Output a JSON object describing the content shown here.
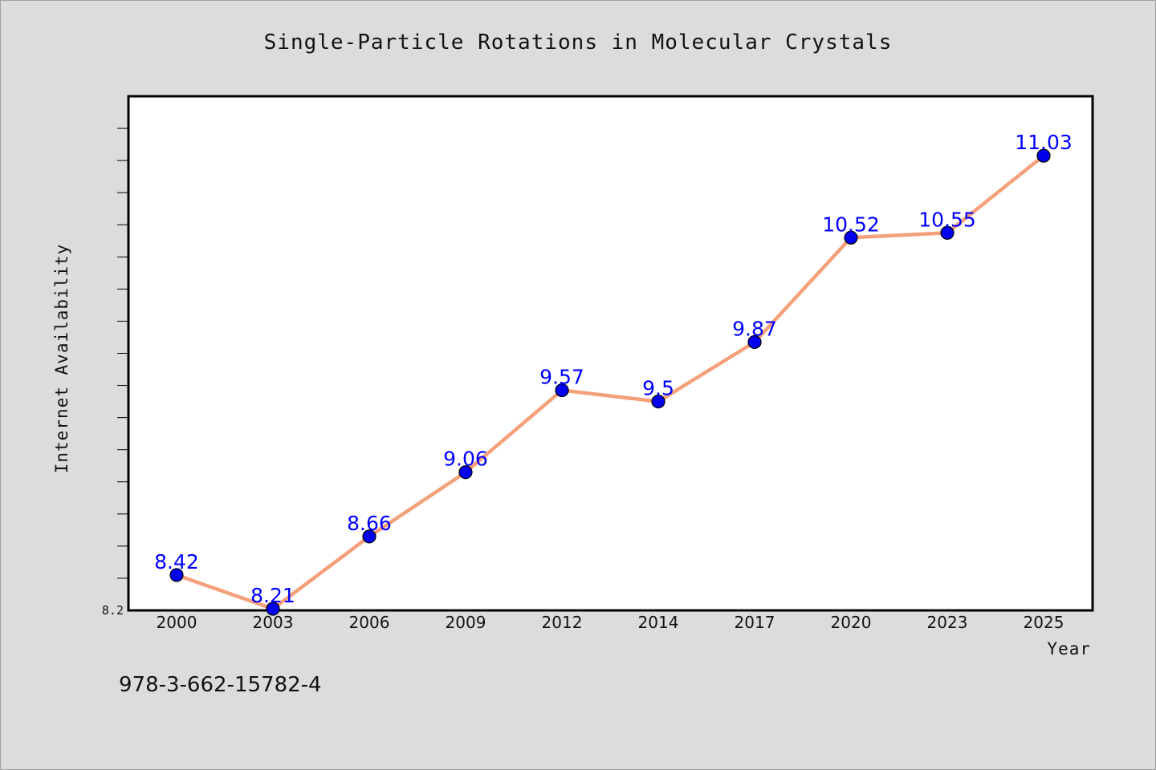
{
  "chart_data": {
    "type": "line",
    "title": "Single-Particle Rotations in Molecular Crystals",
    "xlabel": "Year",
    "ylabel": "Internet Availability",
    "categories": [
      "2000",
      "2003",
      "2006",
      "2009",
      "2012",
      "2014",
      "2017",
      "2020",
      "2023",
      "2025"
    ],
    "series": [
      {
        "values": [
          8.42,
          8.21,
          8.66,
          9.06,
          9.57,
          9.5,
          9.87,
          10.52,
          10.55,
          11.03
        ],
        "labels": [
          "8.42",
          "8.21",
          "8.66",
          "9.06",
          "9.57",
          "9.5",
          "9.87",
          "10.52",
          "10.55",
          "11.03"
        ],
        "line_color": "#f4a07a",
        "marker_color": "#0000ee"
      }
    ],
    "ylim": [
      8.2,
      11.4
    ],
    "y_tick_labels": [
      "8.2"
    ],
    "grid": false,
    "plot_background": "#ffffff",
    "figure_background": "#dcdcdc"
  },
  "footer_text": "978-3-662-15782-4"
}
